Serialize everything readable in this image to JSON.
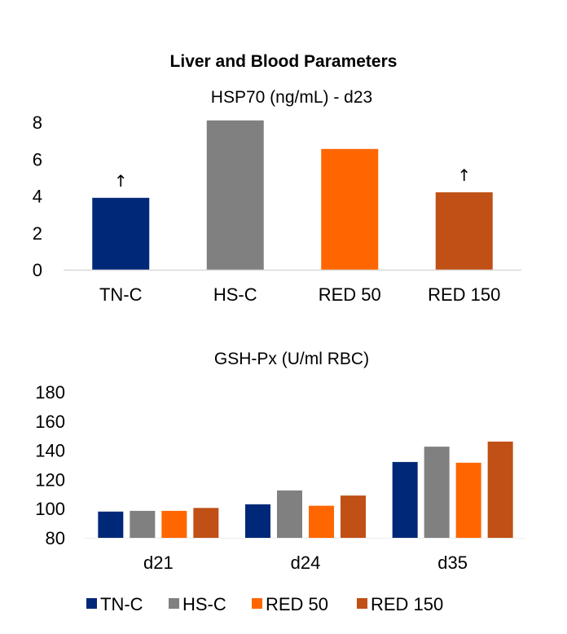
{
  "title": "Liver and Blood Parameters",
  "colors": {
    "TN-C": "#002878",
    "HS-C": "#808080",
    "RED 50": "#FF6600",
    "RED 150": "#C05016",
    "axis": "#d9d9d9"
  },
  "chart_data": [
    {
      "type": "bar",
      "title": "HSP70 (ng/mL) - d23",
      "xlabel": "",
      "ylabel": "",
      "categories": [
        "TN-C",
        "HS-C",
        "RED 50",
        "RED 150"
      ],
      "values": [
        3.9,
        8.1,
        6.55,
        4.2
      ],
      "ylim": [
        0,
        8
      ],
      "yticks": [
        "0",
        "2",
        "4",
        "6",
        "8"
      ],
      "grid": false,
      "annotations": [
        {
          "category": "TN-C",
          "text": "↑"
        },
        {
          "category": "RED 150",
          "text": "↑"
        }
      ]
    },
    {
      "type": "bar",
      "title": "GSH-Px (U/ml RBC)",
      "xlabel": "",
      "ylabel": "",
      "categories": [
        "d21",
        "d24",
        "d35"
      ],
      "series": [
        {
          "name": "TN-C",
          "values": [
            98,
            103,
            132
          ]
        },
        {
          "name": "HS-C",
          "values": [
            98.5,
            112.5,
            142.5
          ]
        },
        {
          "name": "RED 50",
          "values": [
            98.5,
            102,
            131.5
          ]
        },
        {
          "name": "RED 150",
          "values": [
            100.5,
            109,
            146
          ]
        }
      ],
      "ylim": [
        80,
        180
      ],
      "yticks": [
        "80",
        "100",
        "120",
        "140",
        "160",
        "180"
      ],
      "grid": false,
      "legend": {
        "position": "bottom",
        "entries": [
          "TN-C",
          "HS-C",
          "RED 50",
          "RED 150"
        ]
      }
    }
  ]
}
